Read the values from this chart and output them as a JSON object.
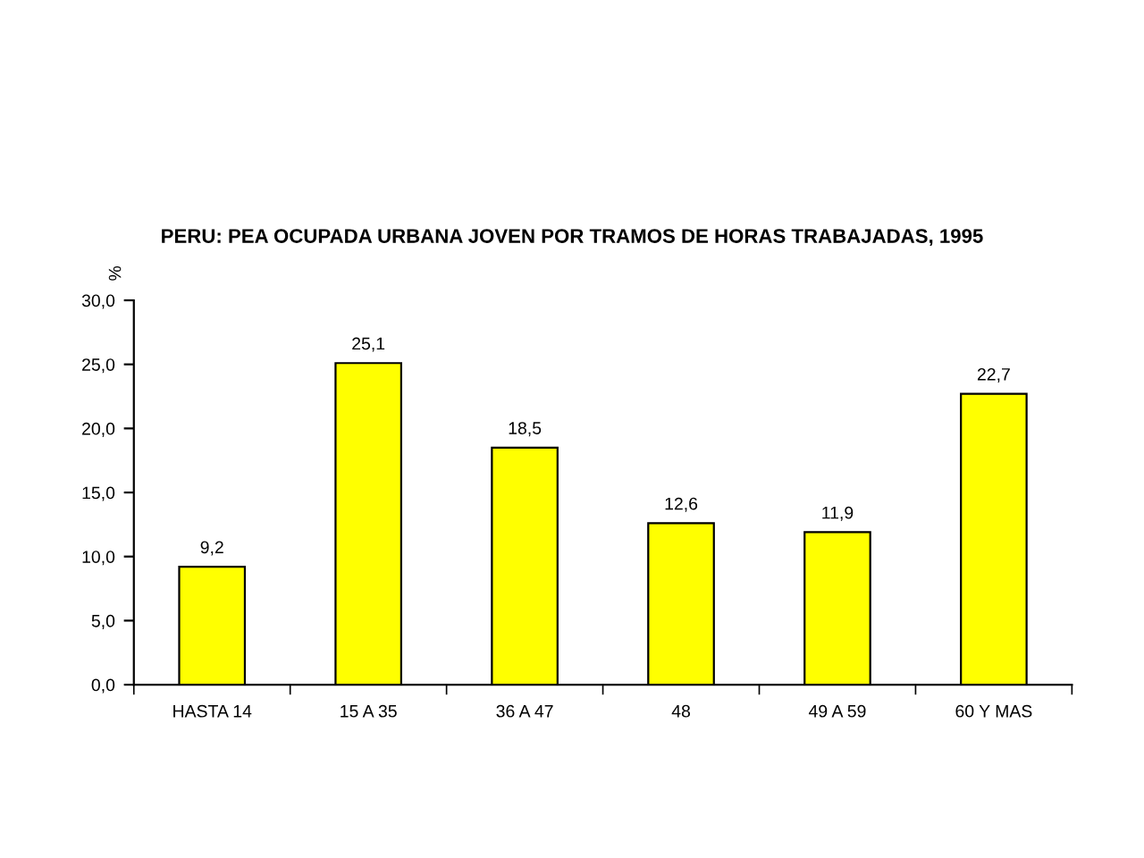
{
  "chart_data": {
    "type": "bar",
    "title": "PERU: PEA OCUPADA URBANA JOVEN POR TRAMOS DE HORAS TRABAJADAS, 1995",
    "ylabel": "%",
    "categories": [
      "HASTA 14",
      "15 A 35",
      "36 A 47",
      "48",
      "49 A 59",
      "60 Y MAS"
    ],
    "values": [
      9.2,
      25.1,
      18.5,
      12.6,
      11.9,
      22.7
    ],
    "value_labels": [
      "9,2",
      "25,1",
      "18,5",
      "12,6",
      "11,9",
      "22,7"
    ],
    "color": "#ffff00",
    "ylim": [
      0,
      30
    ],
    "yticks": [
      {
        "value": 0,
        "label": "0,0"
      },
      {
        "value": 5,
        "label": "5,0"
      },
      {
        "value": 10,
        "label": "10,0"
      },
      {
        "value": 15,
        "label": "15,0"
      },
      {
        "value": 20,
        "label": "20,0"
      },
      {
        "value": 25,
        "label": "25,0"
      },
      {
        "value": 30,
        "label": "30,0"
      }
    ],
    "grid": false,
    "legend": false
  }
}
